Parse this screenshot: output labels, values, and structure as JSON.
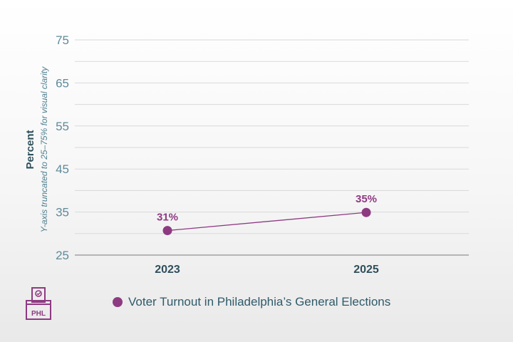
{
  "colors": {
    "series": "#8e3a82",
    "grid": "#d9d9d9",
    "axis": "#b5b5b5",
    "tick": "#5f8a9a",
    "category": "#2f4f5c"
  },
  "logo": {
    "text": "PHL",
    "icon": "ballot-box-icon"
  },
  "chart_data": {
    "type": "line",
    "title": "",
    "xlabel": "",
    "ylabel": "Percent",
    "ylabel_note": "Y-axis truncated to 25–75% for visual clarity",
    "ylim": [
      25,
      75
    ],
    "yticks": [
      25,
      35,
      45,
      55,
      65,
      75
    ],
    "grid": true,
    "categories": [
      "2023",
      "2025"
    ],
    "series": [
      {
        "name": "Voter Turnout in Philadelphia’s General Elections",
        "values": [
          30.7,
          34.9
        ],
        "labels": [
          "31%",
          "35%"
        ]
      }
    ],
    "legend_position": "bottom"
  }
}
